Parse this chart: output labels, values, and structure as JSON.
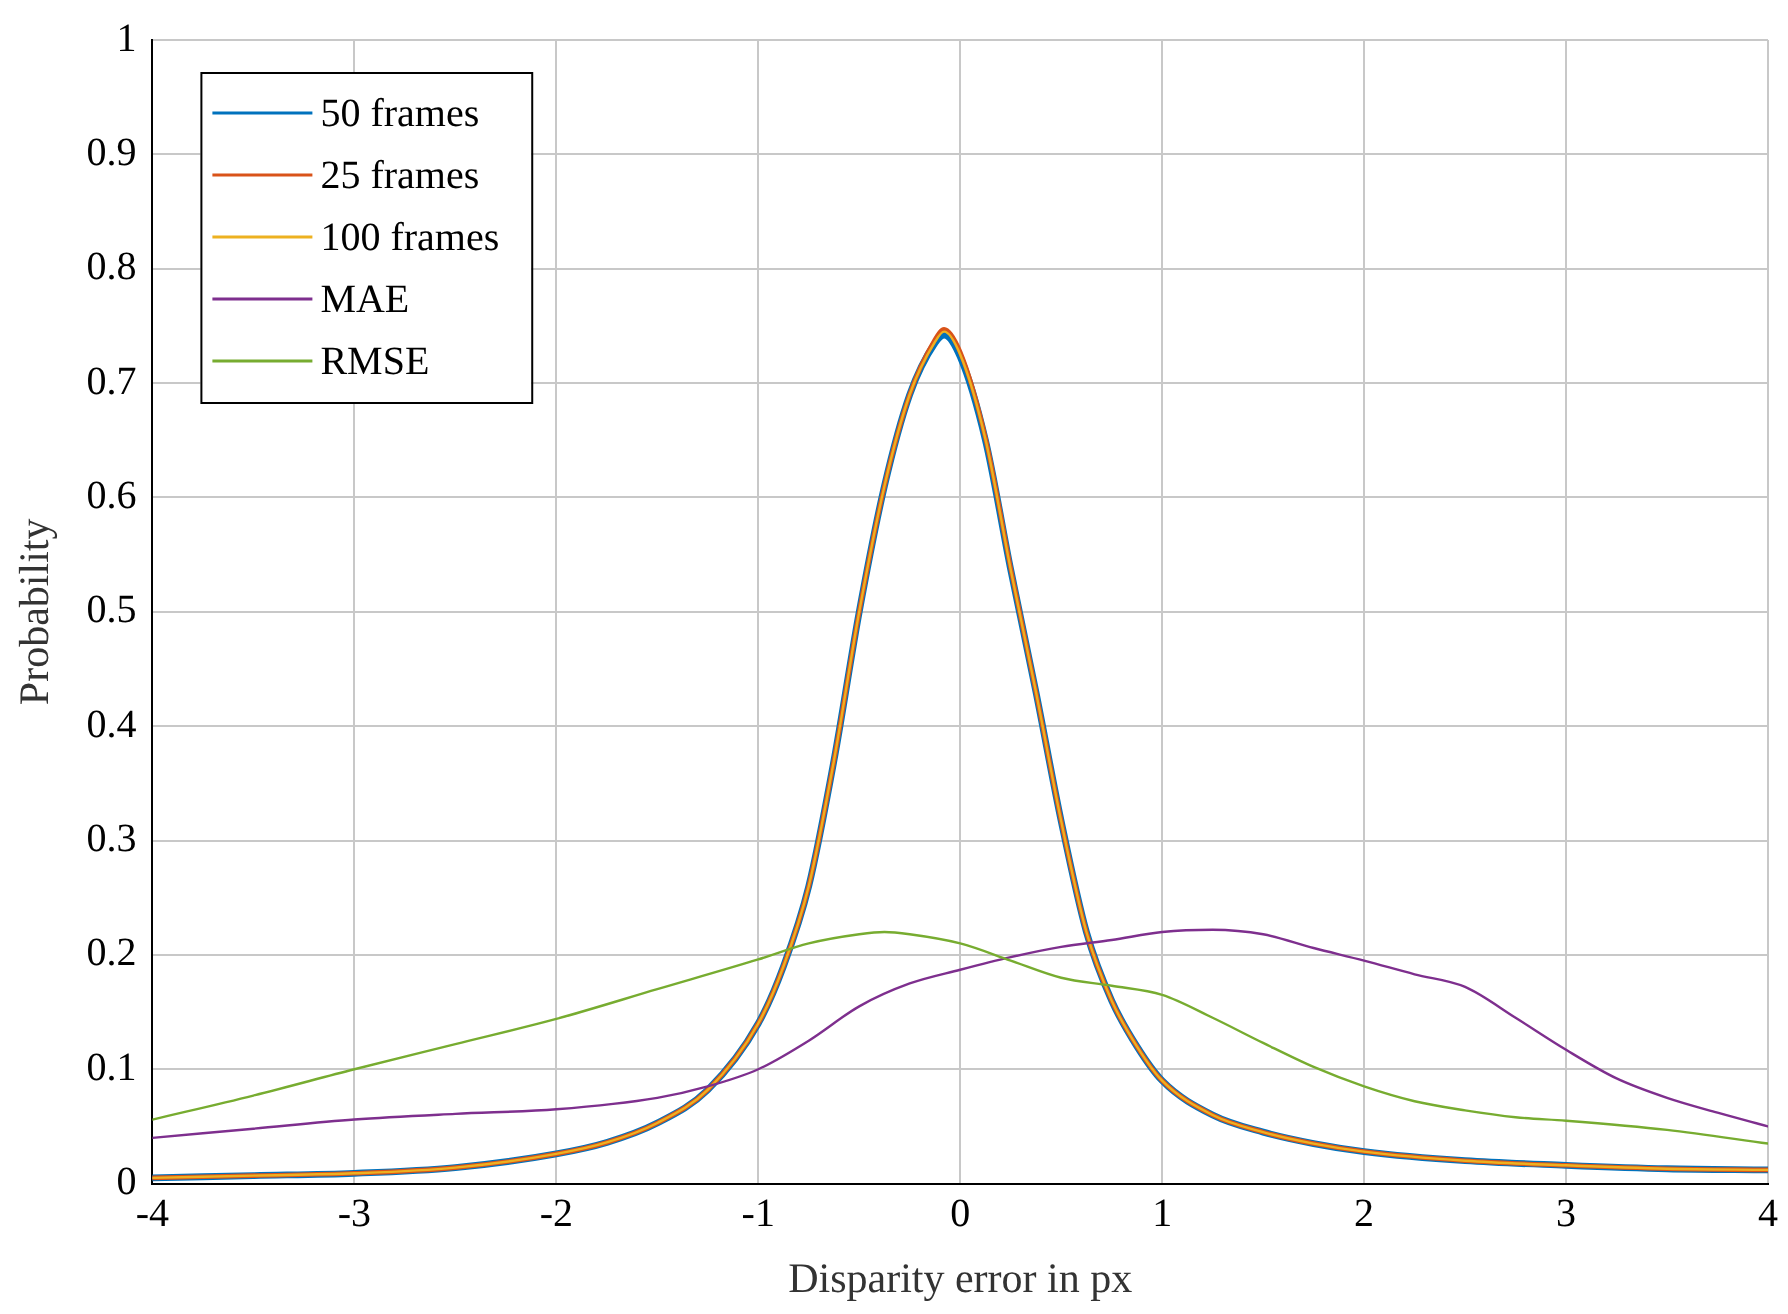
{
  "chart_data": {
    "type": "line",
    "xlabel": "Disparity error in px",
    "ylabel": "Probability",
    "xlim": [
      -4,
      4
    ],
    "ylim": [
      0,
      1
    ],
    "xticks": [
      -4,
      -3,
      -2,
      -1,
      0,
      1,
      2,
      3,
      4
    ],
    "yticks": [
      0,
      0.1,
      0.2,
      0.3,
      0.4,
      0.5,
      0.6,
      0.7,
      0.8,
      0.9,
      1
    ],
    "grid": true,
    "legend": "top left",
    "marker": "none",
    "line_style": "solid",
    "series": [
      {
        "name": "50 frames",
        "color": "#0072bd",
        "x": [
          -4,
          -3.5,
          -3,
          -2.5,
          -2,
          -1.75,
          -1.5,
          -1.25,
          -1,
          -0.875,
          -0.75,
          -0.625,
          -0.5,
          -0.375,
          -0.25,
          -0.125,
          -0.08,
          0,
          0.125,
          0.25,
          0.375,
          0.5,
          0.625,
          0.75,
          0.875,
          1,
          1.25,
          1.5,
          1.75,
          2,
          2.5,
          3,
          3.5,
          4
        ],
        "values": [
          0.005,
          0.007,
          0.009,
          0.014,
          0.026,
          0.036,
          0.053,
          0.082,
          0.14,
          0.19,
          0.26,
          0.37,
          0.5,
          0.61,
          0.69,
          0.735,
          0.742,
          0.723,
          0.65,
          0.537,
          0.43,
          0.317,
          0.22,
          0.16,
          0.12,
          0.09,
          0.06,
          0.045,
          0.035,
          0.028,
          0.02,
          0.016,
          0.013,
          0.012
        ]
      },
      {
        "name": "25 frames",
        "color": "#d95319",
        "x": [
          -4,
          -3.5,
          -3,
          -2.5,
          -2,
          -1.75,
          -1.5,
          -1.25,
          -1,
          -0.875,
          -0.75,
          -0.625,
          -0.5,
          -0.375,
          -0.25,
          -0.125,
          -0.08,
          0,
          0.125,
          0.25,
          0.375,
          0.5,
          0.625,
          0.75,
          0.875,
          1,
          1.25,
          1.5,
          1.75,
          2,
          2.5,
          3,
          3.5,
          4
        ],
        "values": [
          0.005,
          0.007,
          0.009,
          0.014,
          0.026,
          0.036,
          0.053,
          0.082,
          0.14,
          0.19,
          0.26,
          0.37,
          0.5,
          0.61,
          0.69,
          0.738,
          0.747,
          0.727,
          0.652,
          0.538,
          0.43,
          0.317,
          0.22,
          0.16,
          0.12,
          0.09,
          0.06,
          0.045,
          0.035,
          0.028,
          0.02,
          0.016,
          0.013,
          0.012
        ]
      },
      {
        "name": "100 frames",
        "color": "#edb120",
        "x": [
          -4,
          -3.5,
          -3,
          -2.5,
          -2,
          -1.75,
          -1.5,
          -1.25,
          -1,
          -0.875,
          -0.75,
          -0.625,
          -0.5,
          -0.375,
          -0.25,
          -0.125,
          -0.08,
          0,
          0.125,
          0.25,
          0.375,
          0.5,
          0.625,
          0.75,
          0.875,
          1,
          1.25,
          1.5,
          1.75,
          2,
          2.5,
          3,
          3.5,
          4
        ],
        "values": [
          0.005,
          0.007,
          0.009,
          0.014,
          0.026,
          0.036,
          0.053,
          0.082,
          0.14,
          0.19,
          0.26,
          0.37,
          0.5,
          0.61,
          0.69,
          0.736,
          0.745,
          0.725,
          0.651,
          0.537,
          0.43,
          0.317,
          0.22,
          0.16,
          0.12,
          0.09,
          0.06,
          0.045,
          0.035,
          0.028,
          0.02,
          0.016,
          0.013,
          0.012
        ]
      },
      {
        "name": "MAE",
        "color": "#7e2f8e",
        "x": [
          -4,
          -3.5,
          -3,
          -2.5,
          -2,
          -1.5,
          -1.25,
          -1,
          -0.75,
          -0.5,
          -0.25,
          0,
          0.25,
          0.5,
          0.75,
          1,
          1.25,
          1.5,
          1.75,
          2,
          2.25,
          2.5,
          2.75,
          3,
          3.25,
          3.5,
          3.75,
          4
        ],
        "values": [
          0.04,
          0.048,
          0.056,
          0.061,
          0.065,
          0.075,
          0.085,
          0.1,
          0.125,
          0.155,
          0.175,
          0.187,
          0.198,
          0.207,
          0.213,
          0.22,
          0.222,
          0.218,
          0.206,
          0.195,
          0.183,
          0.172,
          0.145,
          0.117,
          0.092,
          0.075,
          0.062,
          0.05
        ]
      },
      {
        "name": "RMSE",
        "color": "#77ac30",
        "x": [
          -4,
          -3.5,
          -3,
          -2.5,
          -2,
          -1.5,
          -1,
          -0.75,
          -0.5,
          -0.375,
          -0.25,
          0,
          0.25,
          0.5,
          0.75,
          1,
          1.25,
          1.5,
          1.75,
          2,
          2.25,
          2.5,
          2.75,
          3,
          3.5,
          4
        ],
        "values": [
          0.056,
          0.077,
          0.1,
          0.122,
          0.144,
          0.17,
          0.196,
          0.21,
          0.218,
          0.22,
          0.218,
          0.21,
          0.195,
          0.18,
          0.173,
          0.165,
          0.145,
          0.123,
          0.102,
          0.085,
          0.072,
          0.064,
          0.058,
          0.055,
          0.047,
          0.035
        ]
      }
    ]
  }
}
